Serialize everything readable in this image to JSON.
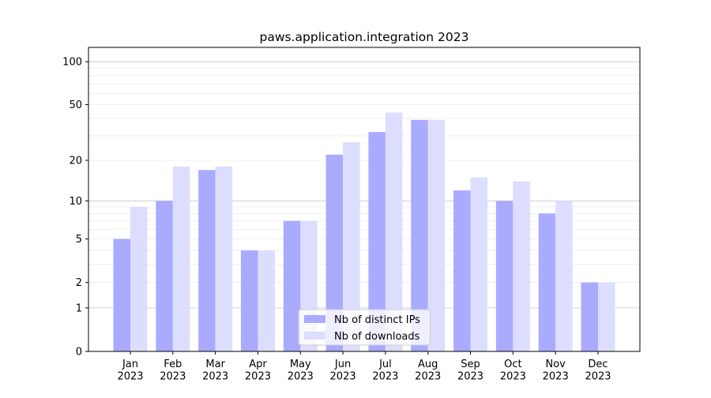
{
  "chart_data": {
    "type": "bar",
    "title": "paws.application.integration 2023",
    "xlabel": "",
    "ylabel": "",
    "yscale": "symlog",
    "ylim": [
      0,
      126
    ],
    "yticks": [
      0,
      1,
      2,
      5,
      10,
      20,
      50,
      100
    ],
    "grid": true,
    "legend_position": "lower-center",
    "categories": [
      "Jan\n2023",
      "Feb\n2023",
      "Mar\n2023",
      "Apr\n2023",
      "May\n2023",
      "Jun\n2023",
      "Jul\n2023",
      "Aug\n2023",
      "Sep\n2023",
      "Oct\n2023",
      "Nov\n2023",
      "Dec\n2023"
    ],
    "series": [
      {
        "name": "Nb of distinct IPs",
        "color": "#aaaaff",
        "values": [
          5,
          10,
          17,
          4,
          7,
          22,
          32,
          39,
          12,
          10,
          8,
          2
        ]
      },
      {
        "name": "Nb of downloads",
        "color": "#ddddff",
        "values": [
          9,
          18,
          18,
          4,
          7,
          27,
          44,
          39,
          15,
          14,
          10,
          2
        ]
      }
    ]
  }
}
